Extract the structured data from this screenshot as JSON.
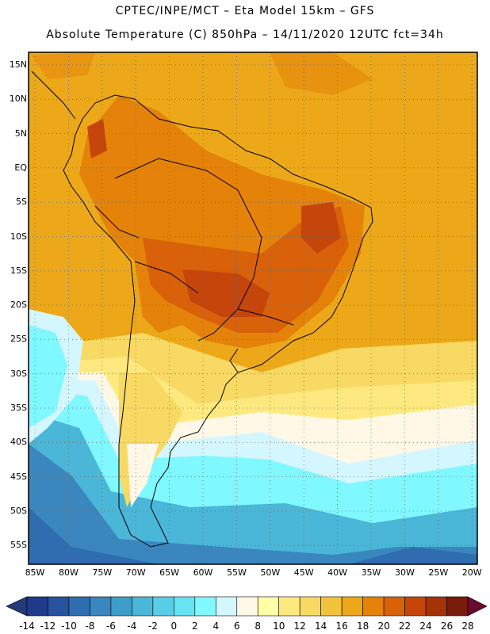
{
  "header": {
    "line1": "CPTEC/INPE/MCT –   Eta Model 15km – GFS",
    "line2": "Absolute Temperature (C) 850hPa – 14/11/2020 12UTC fct=34h"
  },
  "map": {
    "lat_labels": [
      "15N",
      "10N",
      "5N",
      "EQ",
      "5S",
      "10S",
      "15S",
      "20S",
      "25S",
      "30S",
      "35S",
      "40S",
      "45S",
      "50S",
      "55S"
    ],
    "lon_labels": [
      "85W",
      "80W",
      "75W",
      "70W",
      "65W",
      "60W",
      "55W",
      "50W",
      "45W",
      "40W",
      "35W",
      "30W",
      "25W",
      "20W"
    ],
    "grid": "dotted",
    "projection": "lat-lon"
  },
  "colorbar": {
    "labels": [
      "-14",
      "-12",
      "-10",
      "-8",
      "-6",
      "-4",
      "-2",
      "0",
      "2",
      "4",
      "6",
      "8",
      "10",
      "12",
      "14",
      "16",
      "18",
      "20",
      "22",
      "24",
      "26",
      "28"
    ],
    "colors": [
      "#1f3a8a",
      "#27529e",
      "#2f6db0",
      "#3a87bf",
      "#3e9ec9",
      "#4ab6d8",
      "#57cde6",
      "#66e4f2",
      "#7ff8ff",
      "#d4f6ff",
      "#fff8e6",
      "#ffffa6",
      "#fde97f",
      "#f8d964",
      "#f1c33d",
      "#eca818",
      "#e4820a",
      "#d9610a",
      "#c5450a",
      "#a63306",
      "#7a1c0c"
    ],
    "under_color": "#223a7a",
    "over_color": "#6b0a2e"
  },
  "colors": {
    "warm": "#eca818",
    "hot": "#d9610a",
    "hotter": "#c5450a",
    "mild": "#f8d964",
    "pale": "#fff8e6",
    "cool": "#7ff8ff",
    "cold": "#4ab6d8",
    "deep": "#2f6db0"
  }
}
